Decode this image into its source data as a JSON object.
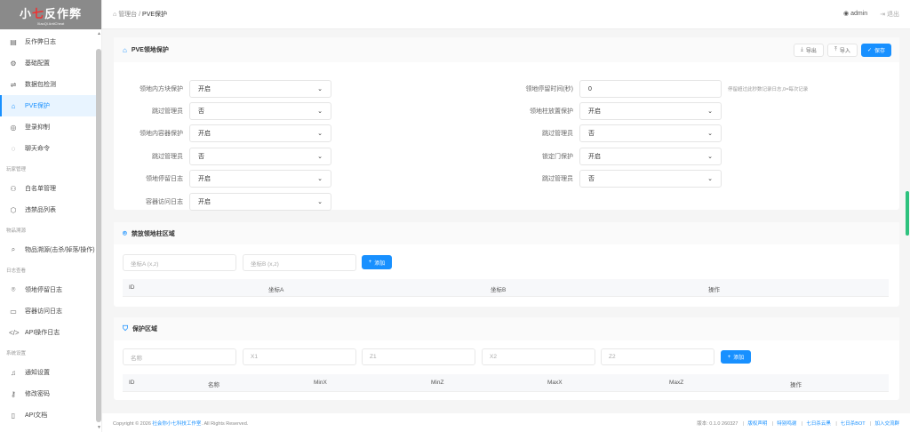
{
  "app": {
    "logo_title_pre": "小",
    "logo_title_mid": "七",
    "logo_title_post": "反作弊",
    "logo_subtitle": "XiaoQi AntiCheat"
  },
  "sidebar": {
    "items": [
      {
        "label": "反作弊日志",
        "icon": "file-text-icon"
      },
      {
        "label": "基础配置",
        "icon": "gear-icon"
      },
      {
        "label": "数据包检测",
        "icon": "network-icon"
      },
      {
        "label": "PVE保护",
        "icon": "home-shield-icon",
        "active": true
      },
      {
        "group": "玩家管理"
      },
      {
        "label": "登录抑制",
        "icon": "shield-icon"
      },
      {
        "label": "聊天命令",
        "icon": "chat-icon"
      }
    ],
    "menu": [
      {
        "label": "反作弊日志",
        "icon": "▤"
      },
      {
        "label": "基础配置",
        "icon": "⚙"
      },
      {
        "label": "数据包检测",
        "icon": "⇌"
      },
      {
        "label": "PVE保护",
        "icon": "⌂",
        "active": true
      },
      {
        "label": "登录抑制",
        "icon": "◎"
      },
      {
        "label": "聊天命令",
        "icon": "◌"
      },
      {
        "group": "玩家管理"
      },
      {
        "label": "白名单管理",
        "icon": "⚇"
      },
      {
        "label": "违禁品列表",
        "icon": "⬡"
      },
      {
        "group": "物品溯源"
      },
      {
        "label": "物品溯源(击杀/掉落/操作)",
        "icon": "⌕"
      },
      {
        "group": "日志查看"
      },
      {
        "label": "领地停留日志",
        "icon": "⌾"
      },
      {
        "label": "容器访问日志",
        "icon": "▭"
      },
      {
        "label": "API操作日志",
        "icon": "</>"
      },
      {
        "group": "系统设置"
      },
      {
        "label": "通知设置",
        "icon": "♫"
      },
      {
        "label": "修改密码",
        "icon": "⚷"
      },
      {
        "label": "API文档",
        "icon": "▯"
      }
    ]
  },
  "header": {
    "breadcrumb_root": "管理台",
    "breadcrumb_sep": " / ",
    "breadcrumb_current": "PVE保护",
    "user": "admin",
    "logout": "退出"
  },
  "pve": {
    "title": "PVE领地保护",
    "export": "导出",
    "import": "导入",
    "save": "保存",
    "left": [
      {
        "label": "领地内方块保护",
        "value": "开启"
      },
      {
        "label": "跳过管理员",
        "value": "否"
      },
      {
        "label": "领地内容器保护",
        "value": "开启"
      },
      {
        "label": "跳过管理员",
        "value": "否"
      },
      {
        "label": "领地停留日志",
        "value": "开启"
      },
      {
        "label": "容器访问日志",
        "value": "开启"
      }
    ],
    "right": [
      {
        "label": "领地停留时间(秒)",
        "value": "0",
        "hint": "停留超过此秒数记录日志,0=每次记录",
        "input": true
      },
      {
        "label": "领地柱放置保护",
        "value": "开启"
      },
      {
        "label": "跳过管理员",
        "value": "否"
      },
      {
        "label": "锁定门保护",
        "value": "开启"
      },
      {
        "label": "跳过管理员",
        "value": "否"
      }
    ]
  },
  "forbidden": {
    "title": "禁放领地柱区域",
    "placeholder_a": "坐标A (x,z)",
    "placeholder_b": "坐标B (x,z)",
    "add": "添加",
    "columns": [
      "ID",
      "坐标A",
      "坐标B",
      "操作"
    ]
  },
  "protect": {
    "title": "保护区域",
    "placeholders": [
      "名称",
      "X1",
      "Z1",
      "X2",
      "Z2"
    ],
    "add": "添加",
    "columns": [
      "ID",
      "名称",
      "MinX",
      "MinZ",
      "MaxX",
      "MaxZ",
      "操作"
    ]
  },
  "footer": {
    "copyright_pre": "Copyright © 2026 ",
    "company": "社会你小七科技工作室",
    "copyright_post": ". All Rights Reserved.",
    "version": "版本: 0.1.0 260327",
    "links": [
      "版权声明",
      "特别鸣谢",
      "七日杀云黑",
      "七日杀BOT",
      "加入交流群"
    ]
  },
  "colors": {
    "accent": "#1890ff",
    "logo_bg": "#8a8a8a",
    "logo_highlight": "#e33333"
  }
}
